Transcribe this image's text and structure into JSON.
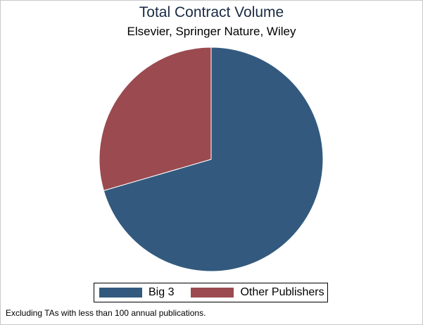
{
  "chart_data": {
    "type": "pie",
    "title": "Total Contract Volume",
    "subtitle": "Elsevier, Springer Nature, Wiley",
    "note": "Excluding TAs with less than 100 annual publications.",
    "categories": [
      "Big 3",
      "Other Publishers"
    ],
    "values": [
      70.5,
      29.5
    ],
    "colors": [
      "#335a7e",
      "#9b4a50"
    ],
    "legend_position": "bottom"
  }
}
